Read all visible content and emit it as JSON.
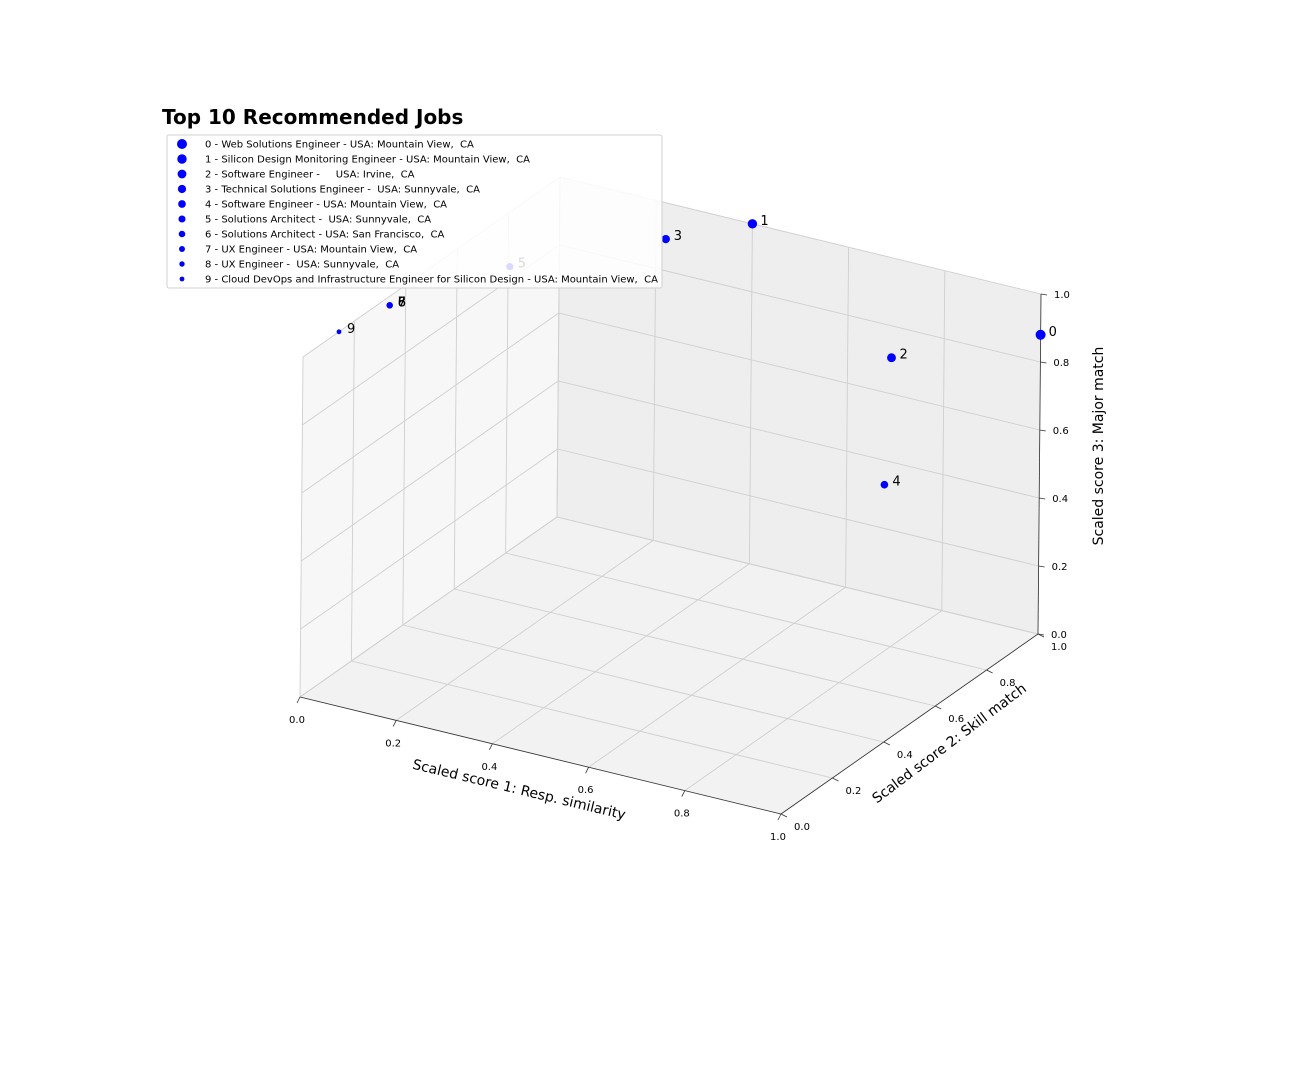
{
  "chart_data": {
    "type": "scatter",
    "projection": "3d",
    "title": "Top 10 Recommended Jobs",
    "xlabel": "Scaled score 1: Resp. similarity",
    "ylabel": "Scaled score 2: Skill match",
    "zlabel": "Scaled score 3: Major match",
    "xlim": [
      0,
      1
    ],
    "ylim": [
      0,
      1
    ],
    "zlim": [
      0,
      1
    ],
    "xticks": [
      "0.0",
      "0.2",
      "0.4",
      "0.6",
      "0.8",
      "1.0"
    ],
    "yticks": [
      "0.0",
      "0.2",
      "0.4",
      "0.6",
      "0.8",
      "1.0"
    ],
    "zticks": [
      "0.0",
      "0.2",
      "0.4",
      "0.6",
      "0.8",
      "1.0"
    ],
    "grid": true,
    "legend_placement": "top-left",
    "marker_color": "#0000ff",
    "points": [
      {
        "label": "0",
        "x": 1.0,
        "y": 1.0,
        "z": 0.88
      },
      {
        "label": "1",
        "x": 0.4,
        "y": 1.0,
        "z": 1.0
      },
      {
        "label": "2",
        "x": 0.85,
        "y": 0.7,
        "z": 0.92
      },
      {
        "label": "3",
        "x": 0.3,
        "y": 0.85,
        "z": 1.0
      },
      {
        "label": "4",
        "x": 0.97,
        "y": 0.45,
        "z": 0.72
      },
      {
        "label": "5",
        "x": 0.12,
        "y": 0.58,
        "z": 1.0
      },
      {
        "label": "6",
        "x": 0.02,
        "y": 0.3,
        "z": 1.0
      },
      {
        "label": "7",
        "x": 0.02,
        "y": 0.3,
        "z": 1.0
      },
      {
        "label": "8",
        "x": 0.02,
        "y": 0.3,
        "z": 1.0
      },
      {
        "label": "9",
        "x": 0.0,
        "y": 0.14,
        "z": 1.0
      }
    ],
    "legend": [
      "0 - Web Solutions Engineer - USA: Mountain View,  CA",
      "1 - Silicon Design Monitoring Engineer - USA: Mountain View,  CA",
      "2 - Software Engineer -     USA: Irvine,  CA",
      "3 - Technical Solutions Engineer -  USA: Sunnyvale,  CA",
      "4 - Software Engineer - USA: Mountain View,  CA",
      "5 - Solutions Architect -  USA: Sunnyvale,  CA",
      "6 - Solutions Architect - USA: San Francisco,  CA",
      "7 - UX Engineer - USA: Mountain View,  CA",
      "8 - UX Engineer -  USA: Sunnyvale,  CA",
      "9 - Cloud DevOps and Infrastructure Engineer for Silicon Design - USA: Mountain View,  CA"
    ]
  }
}
